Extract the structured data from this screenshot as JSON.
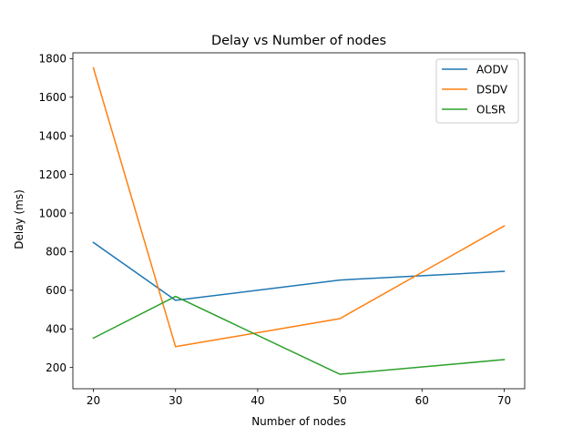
{
  "chart_data": {
    "type": "line",
    "title": "Delay vs Number of nodes",
    "xlabel": "Number of nodes",
    "ylabel": "Delay (ms)",
    "x": [
      20,
      30,
      50,
      70
    ],
    "xlim": [
      17.5,
      72.5
    ],
    "ylim": [
      90,
      1830
    ],
    "xticks": [
      20,
      30,
      40,
      50,
      60,
      70
    ],
    "yticks": [
      200,
      400,
      600,
      800,
      1000,
      1200,
      1400,
      1600,
      1800
    ],
    "grid": false,
    "legend_position": "top-right",
    "series": [
      {
        "name": "AODV",
        "color": "#1f77b4",
        "values": [
          848,
          548,
          653,
          698
        ]
      },
      {
        "name": "DSDV",
        "color": "#ff7f0e",
        "values": [
          1752,
          308,
          453,
          933
        ]
      },
      {
        "name": "OLSR",
        "color": "#2ca02c",
        "values": [
          352,
          568,
          165,
          241
        ]
      }
    ]
  }
}
